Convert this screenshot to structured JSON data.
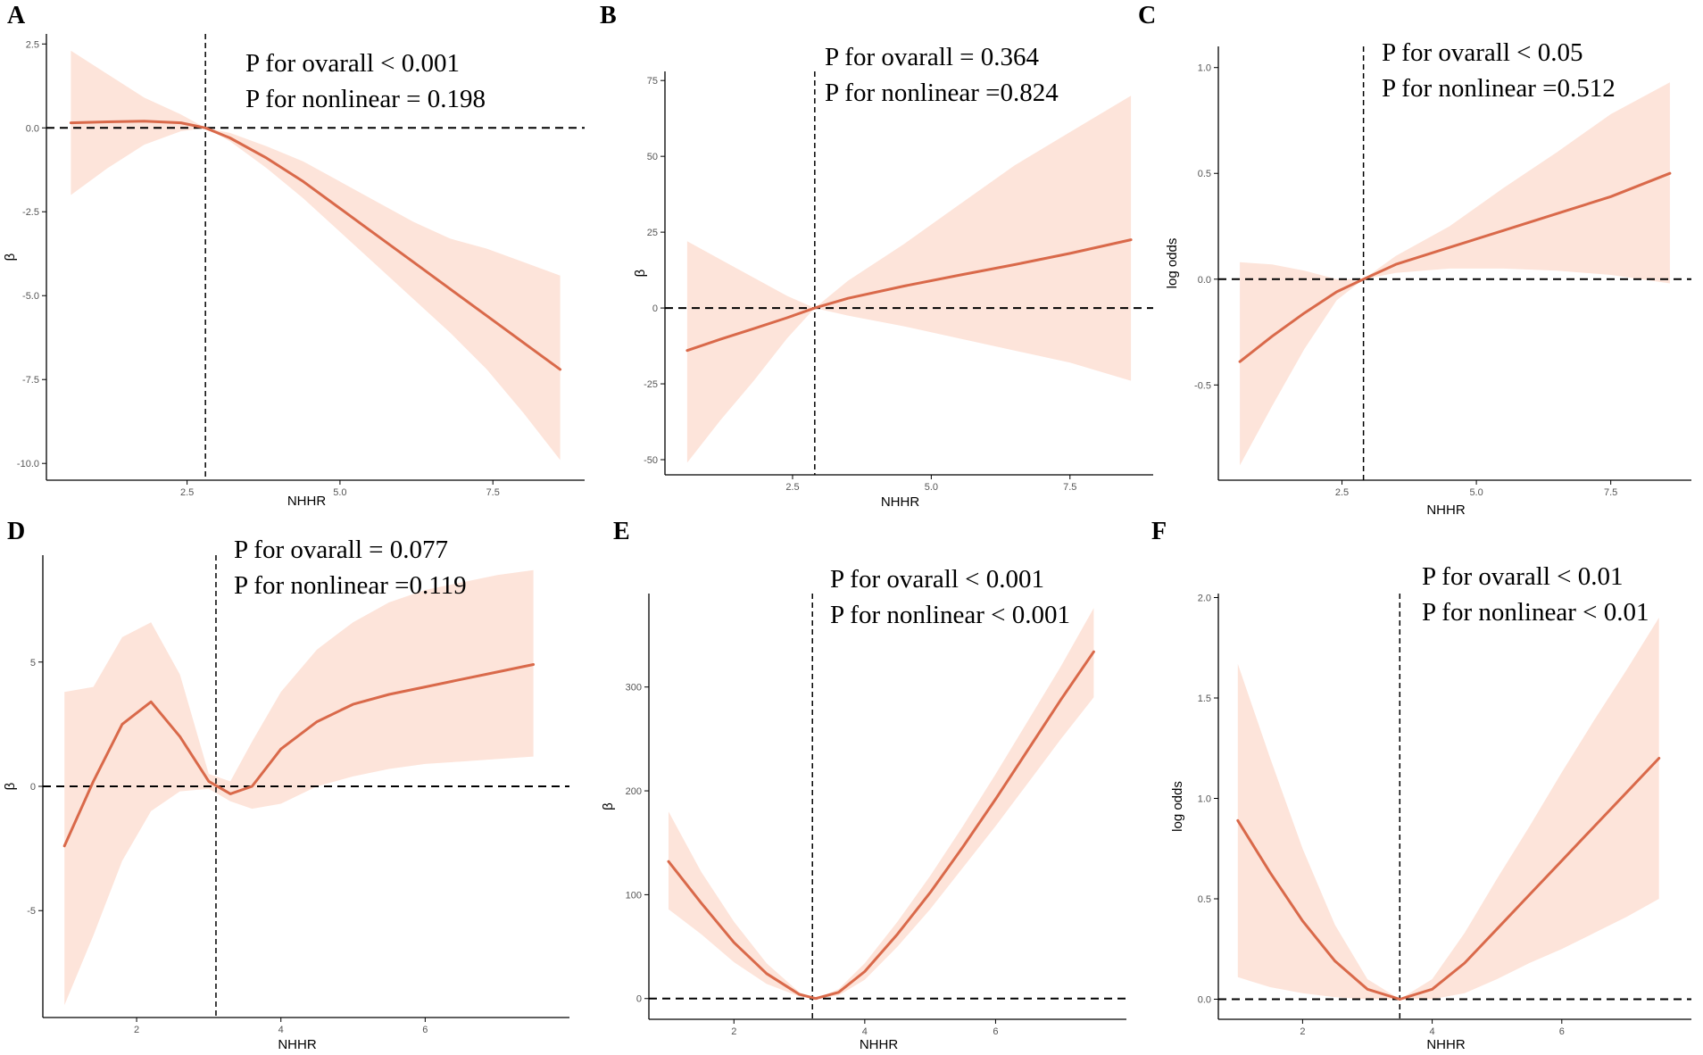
{
  "figure": {
    "panels": [
      "A",
      "B",
      "C",
      "D",
      "E",
      "F"
    ]
  },
  "colors": {
    "line": "#d9694a",
    "band": "#fde4da",
    "axis": "#000000",
    "reference": "#000000"
  },
  "chart_data": [
    {
      "panel": "A",
      "type": "line",
      "title": "",
      "xlabel": "NHHR",
      "ylabel": "β",
      "xlim": [
        0.2,
        9.0
      ],
      "ylim": [
        -10.5,
        2.8
      ],
      "x_ticks": [
        2.5,
        5.0,
        7.5
      ],
      "x_tick_labels": [
        "2.5",
        "5.0",
        "7.5"
      ],
      "y_ticks": [
        2.5,
        0.0,
        -2.5,
        -5.0,
        -7.5,
        -10.0
      ],
      "y_tick_labels": [
        "2.5",
        "0.0",
        "-2.5",
        "-5.0",
        "-7.5",
        "-10.0"
      ],
      "reference_x": 2.8,
      "reference_y": 0,
      "annotations": [
        "P for ovarall < 0.001",
        "P for nonlinear = 0.198"
      ],
      "series": [
        {
          "name": "estimate",
          "x": [
            0.6,
            1.2,
            1.8,
            2.4,
            2.8,
            3.2,
            3.8,
            4.4,
            5.0,
            5.6,
            6.2,
            6.8,
            7.4,
            8.0,
            8.6
          ],
          "y": [
            0.15,
            0.18,
            0.2,
            0.15,
            0.0,
            -0.3,
            -0.9,
            -1.6,
            -2.4,
            -3.2,
            -4.0,
            -4.8,
            -5.6,
            -6.4,
            -7.2
          ],
          "lower": [
            -2.0,
            -1.2,
            -0.5,
            -0.1,
            0.0,
            -0.4,
            -1.2,
            -2.1,
            -3.1,
            -4.1,
            -5.1,
            -6.1,
            -7.2,
            -8.5,
            -9.9
          ],
          "upper": [
            2.3,
            1.6,
            0.9,
            0.4,
            0.0,
            -0.15,
            -0.55,
            -1.0,
            -1.6,
            -2.2,
            -2.8,
            -3.3,
            -3.6,
            -4.0,
            -4.4
          ]
        }
      ]
    },
    {
      "panel": "B",
      "type": "line",
      "title": "",
      "xlabel": "NHHR",
      "ylabel": "β",
      "xlim": [
        0.2,
        9.0
      ],
      "ylim": [
        -55,
        78
      ],
      "x_ticks": [
        2.5,
        5.0,
        7.5
      ],
      "x_tick_labels": [
        "2.5",
        "5.0",
        "7.5"
      ],
      "y_ticks": [
        75,
        50,
        25,
        0,
        -25,
        -50
      ],
      "y_tick_labels": [
        "75",
        "50",
        "25",
        "0",
        "-25",
        "-50"
      ],
      "reference_x": 2.9,
      "reference_y": 0,
      "annotations": [
        "P for ovarall = 0.364",
        "P for nonlinear =0.824"
      ],
      "series": [
        {
          "name": "estimate",
          "x": [
            0.6,
            1.2,
            1.8,
            2.4,
            2.9,
            3.5,
            4.5,
            5.5,
            6.5,
            7.5,
            8.6
          ],
          "y": [
            -14,
            -10.3,
            -6.8,
            -3.2,
            0,
            3.2,
            7.2,
            10.8,
            14.3,
            18.0,
            22.5
          ],
          "lower": [
            -51,
            -37,
            -24,
            -10,
            0,
            -2.5,
            -6,
            -10,
            -14,
            -18,
            -24
          ],
          "upper": [
            22,
            16,
            10,
            4,
            0,
            9,
            21,
            34,
            47,
            58,
            70
          ]
        }
      ]
    },
    {
      "panel": "C",
      "type": "line",
      "title": "",
      "xlabel": "NHHR",
      "ylabel": "log odds",
      "xlim": [
        0.2,
        9.0
      ],
      "ylim": [
        -0.95,
        1.1
      ],
      "x_ticks": [
        2.5,
        5.0,
        7.5
      ],
      "x_tick_labels": [
        "2.5",
        "5.0",
        "7.5"
      ],
      "y_ticks": [
        1.0,
        0.5,
        0.0,
        -0.5
      ],
      "y_tick_labels": [
        "1.0",
        "0.5",
        "0.0",
        "-0.5"
      ],
      "reference_x": 2.9,
      "reference_y": 0,
      "annotations": [
        "P for ovarall < 0.05",
        "P for nonlinear =0.512"
      ],
      "series": [
        {
          "name": "estimate",
          "x": [
            0.6,
            1.2,
            1.8,
            2.4,
            2.9,
            3.5,
            4.5,
            5.5,
            6.5,
            7.5,
            8.6
          ],
          "y": [
            -0.39,
            -0.27,
            -0.16,
            -0.06,
            0.0,
            0.07,
            0.15,
            0.23,
            0.31,
            0.39,
            0.5
          ],
          "lower": [
            -0.88,
            -0.6,
            -0.33,
            -0.1,
            0.0,
            0.03,
            0.05,
            0.05,
            0.04,
            0.02,
            -0.02
          ],
          "upper": [
            0.08,
            0.07,
            0.04,
            0.0,
            0.0,
            0.11,
            0.25,
            0.43,
            0.6,
            0.78,
            0.93
          ]
        }
      ]
    },
    {
      "panel": "D",
      "type": "line",
      "title": "",
      "xlabel": "NHHR",
      "ylabel": "β",
      "xlim": [
        0.7,
        8.0
      ],
      "ylim": [
        -9.3,
        9.3
      ],
      "x_ticks": [
        2,
        4,
        6
      ],
      "x_tick_labels": [
        "2",
        "4",
        "6"
      ],
      "y_ticks": [
        5,
        0,
        -5
      ],
      "y_tick_labels": [
        "5",
        "0",
        "-5"
      ],
      "reference_x": 3.1,
      "reference_y": 0,
      "annotations": [
        "P for ovarall = 0.077",
        "P for nonlinear =0.119"
      ],
      "series": [
        {
          "name": "estimate",
          "x": [
            1.0,
            1.4,
            1.8,
            2.2,
            2.6,
            3.0,
            3.3,
            3.6,
            4.0,
            4.5,
            5.0,
            5.5,
            6.0,
            6.5,
            7.0,
            7.5
          ],
          "y": [
            -2.4,
            0.2,
            2.5,
            3.4,
            2.0,
            0.2,
            -0.3,
            0.0,
            1.5,
            2.6,
            3.3,
            3.7,
            4.0,
            4.3,
            4.6,
            4.9
          ],
          "lower": [
            -8.8,
            -6.0,
            -3.0,
            -1.0,
            -0.2,
            -0.1,
            -0.6,
            -0.9,
            -0.7,
            0.0,
            0.4,
            0.7,
            0.9,
            1.0,
            1.1,
            1.2
          ],
          "upper": [
            3.8,
            4.0,
            6.0,
            6.6,
            4.5,
            0.5,
            0.2,
            1.8,
            3.8,
            5.5,
            6.6,
            7.4,
            7.9,
            8.2,
            8.5,
            8.7
          ]
        }
      ]
    },
    {
      "panel": "E",
      "type": "line",
      "title": "",
      "xlabel": "NHHR",
      "ylabel": "β",
      "xlim": [
        0.7,
        8.0
      ],
      "ylim": [
        -20,
        390
      ],
      "x_ticks": [
        2,
        4,
        6
      ],
      "x_tick_labels": [
        "2",
        "4",
        "6"
      ],
      "y_ticks": [
        300,
        200,
        100,
        0
      ],
      "y_tick_labels": [
        "300",
        "200",
        "100",
        "0"
      ],
      "reference_x": 3.2,
      "reference_y": 0,
      "annotations": [
        "P for ovarall < 0.001",
        "P for nonlinear < 0.001"
      ],
      "series": [
        {
          "name": "estimate",
          "x": [
            1.0,
            1.5,
            2.0,
            2.5,
            3.0,
            3.25,
            3.6,
            4.0,
            4.5,
            5.0,
            5.5,
            6.0,
            6.5,
            7.0,
            7.5
          ],
          "y": [
            132,
            92,
            54,
            24,
            4,
            0,
            6,
            26,
            62,
            102,
            146,
            192,
            240,
            288,
            334
          ],
          "lower": [
            86,
            62,
            35,
            14,
            2,
            0,
            3,
            18,
            50,
            86,
            126,
            166,
            208,
            250,
            290
          ],
          "upper": [
            180,
            122,
            74,
            34,
            6,
            0,
            9,
            34,
            74,
            118,
            166,
            216,
            268,
            320,
            376
          ]
        }
      ]
    },
    {
      "panel": "F",
      "type": "line",
      "title": "",
      "xlabel": "NHHR",
      "ylabel": "log odds",
      "xlim": [
        0.7,
        8.0
      ],
      "ylim": [
        -0.1,
        2.02
      ],
      "x_ticks": [
        2,
        4,
        6
      ],
      "x_tick_labels": [
        "2",
        "4",
        "6"
      ],
      "y_ticks": [
        2.0,
        1.5,
        1.0,
        0.5,
        0.0
      ],
      "y_tick_labels": [
        "2.0",
        "1.5",
        "1.0",
        "0.5",
        "0.0"
      ],
      "reference_x": 3.5,
      "reference_y": 0,
      "annotations": [
        "P for ovarall < 0.01",
        "P for nonlinear < 0.01"
      ],
      "series": [
        {
          "name": "estimate",
          "x": [
            1.0,
            1.5,
            2.0,
            2.5,
            3.0,
            3.5,
            4.0,
            4.5,
            5.0,
            5.5,
            6.0,
            6.5,
            7.0,
            7.5
          ],
          "y": [
            0.89,
            0.63,
            0.39,
            0.19,
            0.05,
            0.0,
            0.05,
            0.18,
            0.35,
            0.52,
            0.69,
            0.86,
            1.03,
            1.2
          ],
          "lower": [
            0.11,
            0.06,
            0.03,
            0.01,
            0.0,
            0.0,
            0.0,
            0.03,
            0.1,
            0.18,
            0.25,
            0.33,
            0.41,
            0.5
          ],
          "upper": [
            1.67,
            1.2,
            0.75,
            0.37,
            0.1,
            0.0,
            0.1,
            0.33,
            0.6,
            0.86,
            1.13,
            1.39,
            1.64,
            1.9
          ]
        }
      ]
    }
  ]
}
